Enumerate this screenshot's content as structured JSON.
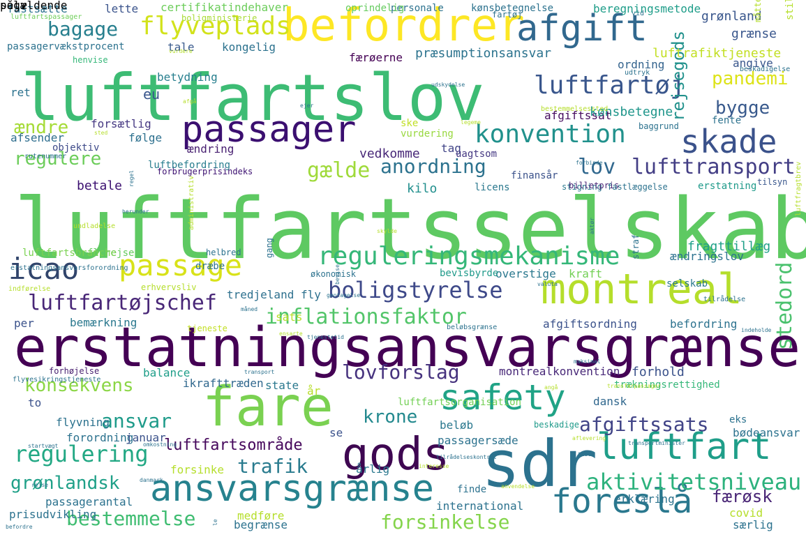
{
  "palette": {
    "background": "#ffffff",
    "purple": "#440154",
    "indigo": "#3b528b",
    "blue": "#31688e",
    "teal": "#21918c",
    "green": "#35b779",
    "lime": "#90d743",
    "yellow": "#fde725"
  },
  "words": [
    {
      "text": "luftfartsselskab",
      "color": "#5ec962"
    },
    {
      "text": "luftfartslov",
      "color": "#3dbc74"
    },
    {
      "text": "erstatningsansvarsgrænse",
      "color": "#440154"
    },
    {
      "text": "sdr",
      "color": "#2c728e"
    },
    {
      "text": "befordrer",
      "color": "#fde725"
    },
    {
      "text": "fare",
      "color": "#7ad151"
    },
    {
      "text": "montreal",
      "color": "#b5de2b"
    },
    {
      "text": "passager",
      "color": "#3b0f70"
    },
    {
      "text": "afgift",
      "color": "#31688e"
    },
    {
      "text": "gods",
      "color": "#3e0751"
    },
    {
      "text": "safety",
      "color": "#20a386"
    },
    {
      "text": "luftfart",
      "color": "#1f9e89"
    },
    {
      "text": "ansvarsgrænse",
      "color": "#26828e"
    },
    {
      "text": "foreslå",
      "color": "#2a788e"
    },
    {
      "text": "skade",
      "color": "#3b528b"
    },
    {
      "text": "passage",
      "color": "#d8e219"
    },
    {
      "text": "reguleringsmekanisme",
      "color": "#35b779"
    },
    {
      "text": "icao",
      "color": "#31446b"
    },
    {
      "text": "konvention",
      "color": "#21918c"
    },
    {
      "text": "flyveplads",
      "color": "#d2e21b"
    },
    {
      "text": "luftfartøj",
      "color": "#39568c"
    },
    {
      "text": "stedord",
      "color": "#4ac16d"
    },
    {
      "text": "boligstyrelse",
      "color": "#3e4989"
    },
    {
      "text": "regulering",
      "color": "#22a884"
    },
    {
      "text": "aktivitetsniveau",
      "color": "#2db27d"
    },
    {
      "text": "lufttransport",
      "color": "#433e85"
    },
    {
      "text": "luftfartøjschef",
      "color": "#482677"
    },
    {
      "text": "inflationsfaktor",
      "color": "#52c569"
    },
    {
      "text": "anordning",
      "color": "#2c728e"
    },
    {
      "text": "gælde",
      "color": "#9fda3a"
    },
    {
      "text": "bagage",
      "color": "#277f8e"
    },
    {
      "text": "rejsegods",
      "color": "#21918c"
    },
    {
      "text": "bygge",
      "color": "#38598c"
    },
    {
      "text": "pandemi",
      "color": "#dde318"
    },
    {
      "text": "lov",
      "color": "#31688e"
    },
    {
      "text": "regulere",
      "color": "#6ccd5a"
    },
    {
      "text": "ændre",
      "color": "#a5db36"
    },
    {
      "text": "lovforslag",
      "color": "#46327e"
    },
    {
      "text": "konsekvens",
      "color": "#8bd646"
    },
    {
      "text": "ansvar",
      "color": "#1e9b8a"
    },
    {
      "text": "afgiftssats",
      "color": "#414487"
    },
    {
      "text": "krone",
      "color": "#23898e"
    },
    {
      "text": "trafik",
      "color": "#297b8e"
    },
    {
      "text": "grønlandsk",
      "color": "#1fa088"
    },
    {
      "text": "bestemmelse",
      "color": "#40bd72"
    },
    {
      "text": "forsinkelse",
      "color": "#84d44b"
    },
    {
      "text": "færøsk",
      "color": "#482475"
    },
    {
      "text": "luftfartsområde",
      "color": "#46085c"
    },
    {
      "text": "kilo",
      "color": "#218f8d"
    },
    {
      "text": "vedkomme",
      "color": "#482878"
    },
    {
      "text": "luftbefordring",
      "color": "#287d8e"
    },
    {
      "text": "betale",
      "color": "#3b0f70"
    },
    {
      "text": "forsætlig",
      "color": "#453882"
    },
    {
      "text": "afsender",
      "color": "#2e6e8e"
    },
    {
      "text": "objektiv",
      "color": "#3e4a89"
    },
    {
      "text": "følge",
      "color": "#2d708e"
    },
    {
      "text": "ændring",
      "color": "#482071"
    },
    {
      "text": "vurdering",
      "color": "#98d83e"
    },
    {
      "text": "ske",
      "color": "#c0df25"
    },
    {
      "text": "tag",
      "color": "#414487"
    },
    {
      "text": "uagtsom",
      "color": "#453882"
    },
    {
      "text": "afgiftssat",
      "color": "#460b5e"
    },
    {
      "text": "kønsbetegne",
      "color": "#1f968b"
    },
    {
      "text": "luftrafiktjeneste",
      "color": "#c2df23"
    },
    {
      "text": "præsumptionsansvar",
      "color": "#2c738e"
    },
    {
      "text": "færøerne",
      "color": "#440154"
    },
    {
      "text": "betydning",
      "color": "#277f8e"
    },
    {
      "text": "ordning",
      "color": "#33638d"
    },
    {
      "text": "angive",
      "color": "#39568c"
    },
    {
      "text": "grænse",
      "color": "#39568c"
    },
    {
      "text": "grønland",
      "color": "#39568c"
    },
    {
      "text": "beregningsmetode",
      "color": "#1e9d89"
    },
    {
      "text": "personale",
      "color": "#2c728e"
    },
    {
      "text": "kønsbetegnelse",
      "color": "#2c728e"
    },
    {
      "text": "oprindelig",
      "color": "#65cb5e"
    },
    {
      "text": "certifikatindehaver",
      "color": "#6ccd5a"
    },
    {
      "text": "boligministerie",
      "color": "#a8db34"
    },
    {
      "text": "lette",
      "color": "#3a538b"
    },
    {
      "text": "fastsætte",
      "color": "#2c728e"
    },
    {
      "text": "luftfartspassager",
      "color": "#6ece58"
    },
    {
      "text": "passagervækstprocent",
      "color": "#2c728e"
    },
    {
      "text": "tale",
      "color": "#38598c"
    },
    {
      "text": "kongelig",
      "color": "#2c728e"
    },
    {
      "text": "henvise",
      "color": "#35b779"
    },
    {
      "text": "vurdere",
      "color": "#b5de2b"
    },
    {
      "text": "eu",
      "color": "#39568c"
    },
    {
      "text": "fragttillæg",
      "color": "#1fa088"
    },
    {
      "text": "ændringslov",
      "color": "#2c728e"
    },
    {
      "text": "erstatning",
      "color": "#1f9a8a"
    },
    {
      "text": "stigning",
      "color": "#2a788e"
    },
    {
      "text": "licens",
      "color": "#2a788e"
    },
    {
      "text": "finansår",
      "color": "#3b528b"
    },
    {
      "text": "billetpris",
      "color": "#482475"
    },
    {
      "text": "tilsyn",
      "color": "#39568c"
    },
    {
      "text": "fastlæggelse",
      "color": "#2c728e"
    },
    {
      "text": "forbrugerprisindeks",
      "color": "#3b0f70"
    },
    {
      "text": "overstige",
      "color": "#2a788e"
    },
    {
      "text": "kraft",
      "color": "#73d055"
    },
    {
      "text": "selskab",
      "color": "#2a788e"
    },
    {
      "text": "bevisbyrde",
      "color": "#1f9a8a"
    },
    {
      "text": "tredjeland fly",
      "color": "#2d708e"
    },
    {
      "text": "sats",
      "color": "#b8de29"
    },
    {
      "text": "befordring",
      "color": "#2c728e"
    },
    {
      "text": "afgiftsordning",
      "color": "#3b528b"
    },
    {
      "text": "beløbsgrænse",
      "color": "#2c728e"
    },
    {
      "text": "tjeneste",
      "color": "#c2df23"
    },
    {
      "text": "bemærkning",
      "color": "#2a788e"
    },
    {
      "text": "per",
      "color": "#3b528b"
    },
    {
      "text": "balance",
      "color": "#1f9e89"
    },
    {
      "text": "forhøjelse",
      "color": "#481f70"
    },
    {
      "text": "ikrafttræden",
      "color": "#31688e"
    },
    {
      "text": "state",
      "color": "#2a788e"
    },
    {
      "text": "år",
      "color": "#b8de29"
    },
    {
      "text": "montrealkonvention",
      "color": "#482878"
    },
    {
      "text": "forhold",
      "color": "#3b528b"
    },
    {
      "text": "trækningsrettighed",
      "color": "#35b779"
    },
    {
      "text": "to",
      "color": "#3b528b"
    },
    {
      "text": "luftfartsorganisation",
      "color": "#73d055"
    },
    {
      "text": "dansk",
      "color": "#31688e"
    },
    {
      "text": "flyvning",
      "color": "#2c728e"
    },
    {
      "text": "se",
      "color": "#3b528b"
    },
    {
      "text": "beløb",
      "color": "#2a788e"
    },
    {
      "text": "beskadige",
      "color": "#1f9a8a"
    },
    {
      "text": "eks",
      "color": "#2c728e"
    },
    {
      "text": "bødeansvar",
      "color": "#2c728e"
    },
    {
      "text": "forordning",
      "color": "#2c728e"
    },
    {
      "text": "januar",
      "color": "#3b528b"
    },
    {
      "text": "passagersæde",
      "color": "#2c728e"
    },
    {
      "text": "forsinke",
      "color": "#b5de2b"
    },
    {
      "text": "årlig",
      "color": "#2a788e"
    },
    {
      "text": "passagerantal",
      "color": "#2c728e"
    },
    {
      "text": "international",
      "color": "#2c728e"
    },
    {
      "text": "erklæring",
      "color": "#2c728e"
    },
    {
      "text": "covid",
      "color": "#b5de2b"
    },
    {
      "text": "særlig",
      "color": "#2c728e"
    },
    {
      "text": "medføre",
      "color": "#b5de2b"
    },
    {
      "text": "begrænse",
      "color": "#2c728e"
    },
    {
      "text": "prisudvikling",
      "color": "#2c728e"
    },
    {
      "text": "finde",
      "color": "#2c728e"
    },
    {
      "text": "ret",
      "color": "#2c728e"
    },
    {
      "text": "dræbe",
      "color": "#2c728e"
    },
    {
      "text": "gang",
      "color": "#2c728e"
    },
    {
      "text": "helbred",
      "color": "#2c728e"
    },
    {
      "text": "flyrejse",
      "color": "#65cb5e"
    },
    {
      "text": "luftfartsbranche",
      "color": "#7ad151"
    },
    {
      "text": "erhvervsliv",
      "color": "#b5de2b"
    },
    {
      "text": "økonomisk",
      "color": "#2c728e"
    },
    {
      "text": "indførelse",
      "color": "#b5de2b"
    },
    {
      "text": "flyvesikringstjeneste",
      "color": "#2c728e"
    },
    {
      "text": "erstatningsansvarsforordning",
      "color": "#2c728e"
    },
    {
      "text": "administrativ",
      "color": "#b5de2b"
    },
    {
      "text": "straf",
      "color": "#2c728e"
    },
    {
      "text": "luftfragtbrev",
      "color": "#b5de2b"
    },
    {
      "text": "stillingsbetegnelse",
      "color": "#b5de2b"
    },
    {
      "text": "måtte",
      "color": "#b5de2b"
    },
    {
      "text": "fartøj",
      "color": "#2c728e"
    },
    {
      "text": "vid",
      "color": "#2c728e"
    },
    {
      "text": "fente",
      "color": "#2c728e"
    },
    {
      "text": "baggrund",
      "color": "#2c728e"
    },
    {
      "text": "beskadigelse",
      "color": "#2c728e"
    },
    {
      "text": "udtryk",
      "color": "#2c728e"
    },
    {
      "text": "bestemmelsessted",
      "color": "#b5de2b"
    },
    {
      "text": "legeme",
      "color": "#b5de2b"
    },
    {
      "text": "forbinde",
      "color": "#2c728e"
    },
    {
      "text": "udskydelse",
      "color": "#2c728e"
    },
    {
      "text": "ejer",
      "color": "#2c728e"
    },
    {
      "text": "afgå",
      "color": "#b5de2b"
    },
    {
      "text": "sted",
      "color": "#b5de2b"
    },
    {
      "text": "rutenummer",
      "color": "#2c728e"
    },
    {
      "text": "undladelse",
      "color": "#b5de2b"
    },
    {
      "text": "herunder",
      "color": "#2c728e"
    },
    {
      "text": "regel",
      "color": "#2c728e"
    },
    {
      "text": "skylde",
      "color": "#b5de2b"
    },
    {
      "text": "aktør",
      "color": "#2c728e"
    },
    {
      "text": "bevise",
      "color": "#2c728e"
    },
    {
      "text": "valuta",
      "color": "#2c728e"
    },
    {
      "text": "tilrådelse",
      "color": "#2c728e"
    },
    {
      "text": "måned",
      "color": "#2c728e"
    },
    {
      "text": "ensarte",
      "color": "#b5de2b"
    },
    {
      "text": "tjenestetid",
      "color": "#2c728e"
    },
    {
      "text": "indeholde",
      "color": "#2c728e"
    },
    {
      "text": "maksimal",
      "color": "#2c728e"
    },
    {
      "text": "transport",
      "color": "#2c728e"
    },
    {
      "text": "angå",
      "color": "#b5de2b"
    },
    {
      "text": "transferpassager",
      "color": "#b5de2b"
    },
    {
      "text": "aflevering",
      "color": "#b5de2b"
    },
    {
      "text": "transportminister",
      "color": "#2c728e"
    },
    {
      "text": "tabe",
      "color": "#2c728e"
    },
    {
      "text": "anvendelse",
      "color": "#b5de2b"
    },
    {
      "text": "tilrådelseskontrol",
      "color": "#2c728e"
    },
    {
      "text": "interesse",
      "color": "#b5de2b"
    },
    {
      "text": "danmark",
      "color": "#2c728e"
    },
    {
      "text": "omkostning",
      "color": "#2c728e"
    },
    {
      "text": "startvægt",
      "color": "#2c728e"
    },
    {
      "text": "rejse",
      "color": "#2c728e"
    },
    {
      "text": "le",
      "color": "#2c728e"
    },
    {
      "text": "befordre",
      "color": "#2c728e"
    },
    {
      "text": "gentagelse",
      "color": "#2c728e"
    },
    {
      "text": "pågældende",
      "color": "#b5de2b"
    },
    {
      "text": "selv",
      "color": "#b5de2b"
    }
  ]
}
